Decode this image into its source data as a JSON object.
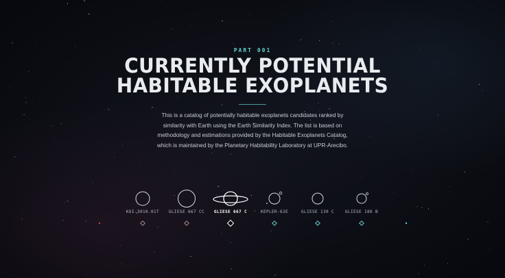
{
  "header": {
    "kicker": "PART 001",
    "title_line1": "CURRENTLY POTENTIAL",
    "title_line2": "HABITABLE EXOPLANETS"
  },
  "intro": {
    "text": "This is a catalog of potentially habitable exoplanets candidates ranked by similarity with Earth using the Earth Similarity Index. The list is based on methodology and estimations provided by the Habitable Exoplanets Catalog, which is maintained by the Planetary Habitability Laboratory at UPR-Arecibo."
  },
  "planets": [
    {
      "name": "KOI-3010.01T",
      "active": false
    },
    {
      "name": "GLIESE 667 CC",
      "active": false
    },
    {
      "name": "GLIESE 667 C",
      "active": true
    },
    {
      "name": "KEPLER-62E",
      "active": false
    },
    {
      "name": "GLIESE 130 C",
      "active": false
    },
    {
      "name": "GLIESE 180 B",
      "active": false
    }
  ],
  "colors": {
    "accent": "#5fd3d0",
    "track_start": "#c2453f",
    "track_end": "#5fd3d0",
    "text": "#e9ecef"
  }
}
